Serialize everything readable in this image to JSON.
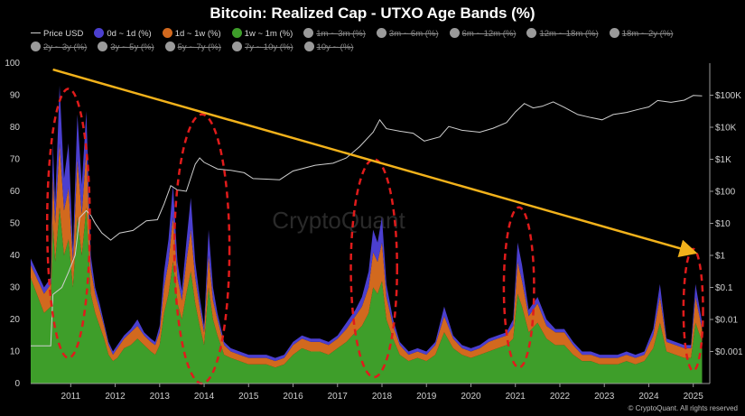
{
  "chart_data": {
    "type": "area",
    "title": "Bitcoin: Realized Cap - UTXO Age Bands (%)",
    "xlabel": "",
    "ylabel": "",
    "x_ticks": [
      "2011",
      "2012",
      "2013",
      "2014",
      "2015",
      "2016",
      "2017",
      "2018",
      "2019",
      "2020",
      "2021",
      "2022",
      "2023",
      "2024",
      "2025"
    ],
    "x_range": [
      2010.1,
      2025.25
    ],
    "y_left_range": [
      0,
      100
    ],
    "y_left_ticks": [
      0,
      10,
      20,
      30,
      40,
      50,
      60,
      70,
      80,
      90,
      100
    ],
    "y_right_scale": "log",
    "y_right_range": [
      0.0001,
      1000000
    ],
    "y_right_ticks": [
      {
        "value": 0.001,
        "label": "$0.001"
      },
      {
        "value": 0.01,
        "label": "$0.01"
      },
      {
        "value": 0.1,
        "label": "$0.1"
      },
      {
        "value": 1,
        "label": "$1"
      },
      {
        "value": 10,
        "label": "$10"
      },
      {
        "value": 100,
        "label": "$100"
      },
      {
        "value": 1000,
        "label": "$1K"
      },
      {
        "value": 10000,
        "label": "$10K"
      },
      {
        "value": 100000,
        "label": "$100K"
      }
    ],
    "grid": false,
    "legend_position": "top",
    "legend": [
      {
        "name": "Price USD",
        "marker": "line",
        "color": "#cfcfcf",
        "active": true
      },
      {
        "name": "0d ~ 1d (%)",
        "marker": "dot",
        "color": "#4b3fcf",
        "active": true
      },
      {
        "name": "1d ~ 1w (%)",
        "marker": "dot",
        "color": "#d2691e",
        "active": true
      },
      {
        "name": "1w ~ 1m (%)",
        "marker": "dot",
        "color": "#3e9e2a",
        "active": true
      },
      {
        "name": "1m ~ 3m (%)",
        "marker": "dot",
        "color": "#9a9a9a",
        "active": false
      },
      {
        "name": "3m ~ 6m (%)",
        "marker": "dot",
        "color": "#9a9a9a",
        "active": false
      },
      {
        "name": "6m ~ 12m (%)",
        "marker": "dot",
        "color": "#9a9a9a",
        "active": false
      },
      {
        "name": "12m ~ 18m (%)",
        "marker": "dot",
        "color": "#9a9a9a",
        "active": false
      },
      {
        "name": "18m ~ 2y (%)",
        "marker": "dot",
        "color": "#9a9a9a",
        "active": false
      },
      {
        "name": "2y ~ 3y (%)",
        "marker": "dot",
        "color": "#9a9a9a",
        "active": false
      },
      {
        "name": "3y ~ 5y (%)",
        "marker": "dot",
        "color": "#9a9a9a",
        "active": false
      },
      {
        "name": "5y ~ 7y (%)",
        "marker": "dot",
        "color": "#9a9a9a",
        "active": false
      },
      {
        "name": "7y ~ 10y (%)",
        "marker": "dot",
        "color": "#9a9a9a",
        "active": false
      },
      {
        "name": "10y ~ (%)",
        "marker": "dot",
        "color": "#9a9a9a",
        "active": false
      }
    ],
    "series_colors": {
      "band_0d_1d": "#4b3fcf",
      "band_1d_1w": "#d2691e",
      "band_1w_1m": "#3e9e2a",
      "price": "#cfcfcf",
      "trendline": "#f2b21b",
      "highlight": "#e01b1b"
    },
    "x": [
      2010.1,
      2010.4,
      2010.55,
      2010.6,
      2010.65,
      2010.75,
      2010.85,
      2010.95,
      2011.05,
      2011.15,
      2011.25,
      2011.35,
      2011.45,
      2011.55,
      2011.65,
      2011.75,
      2011.85,
      2011.95,
      2012.05,
      2012.2,
      2012.35,
      2012.5,
      2012.65,
      2012.8,
      2012.9,
      2013.0,
      2013.1,
      2013.2,
      2013.3,
      2013.4,
      2013.5,
      2013.6,
      2013.7,
      2013.8,
      2013.9,
      2014.0,
      2014.1,
      2014.2,
      2014.3,
      2014.45,
      2014.6,
      2014.8,
      2015.0,
      2015.2,
      2015.4,
      2015.6,
      2015.8,
      2016.0,
      2016.2,
      2016.4,
      2016.6,
      2016.8,
      2017.0,
      2017.2,
      2017.4,
      2017.55,
      2017.7,
      2017.8,
      2017.9,
      2018.0,
      2018.1,
      2018.25,
      2018.4,
      2018.6,
      2018.8,
      2019.0,
      2019.2,
      2019.4,
      2019.6,
      2019.8,
      2020.0,
      2020.2,
      2020.4,
      2020.6,
      2020.8,
      2020.95,
      2021.05,
      2021.15,
      2021.3,
      2021.5,
      2021.7,
      2021.9,
      2022.1,
      2022.3,
      2022.5,
      2022.7,
      2022.9,
      2023.1,
      2023.3,
      2023.5,
      2023.7,
      2023.9,
      2024.1,
      2024.25,
      2024.4,
      2024.6,
      2024.8,
      2024.95,
      2025.05,
      2025.2
    ],
    "series": [
      {
        "name": "1w ~ 1m (%)",
        "values": [
          33,
          22,
          24,
          50,
          38,
          55,
          40,
          45,
          30,
          52,
          40,
          55,
          28,
          22,
          18,
          14,
          9,
          7,
          8,
          11,
          12,
          14,
          12,
          10,
          9,
          12,
          22,
          28,
          38,
          25,
          20,
          28,
          35,
          25,
          18,
          12,
          30,
          20,
          15,
          9,
          8,
          7,
          6,
          6,
          6,
          5,
          6,
          9,
          11,
          10,
          10,
          9,
          11,
          13,
          16,
          18,
          22,
          30,
          28,
          32,
          20,
          14,
          9,
          7,
          8,
          7,
          9,
          16,
          11,
          9,
          8,
          9,
          10,
          11,
          12,
          14,
          28,
          24,
          16,
          19,
          14,
          12,
          12,
          9,
          7,
          7,
          6,
          6,
          6,
          7,
          6,
          7,
          11,
          19,
          10,
          9,
          8,
          8,
          19,
          13
        ]
      },
      {
        "name": "1d ~ 1w (%)",
        "values": [
          4,
          6,
          7,
          15,
          12,
          20,
          14,
          16,
          8,
          18,
          13,
          18,
          8,
          6,
          5,
          4,
          3,
          2,
          3,
          3,
          4,
          4,
          3,
          3,
          3,
          4,
          8,
          10,
          14,
          8,
          6,
          10,
          13,
          8,
          6,
          4,
          10,
          6,
          5,
          3,
          2,
          2,
          2,
          2,
          2,
          2,
          2,
          3,
          3,
          3,
          3,
          3,
          3,
          4,
          5,
          6,
          8,
          11,
          10,
          12,
          7,
          4,
          3,
          2,
          2,
          2,
          3,
          5,
          3,
          2,
          2,
          2,
          3,
          3,
          3,
          4,
          10,
          8,
          5,
          6,
          4,
          4,
          4,
          3,
          2,
          2,
          2,
          2,
          2,
          2,
          2,
          2,
          4,
          8,
          3,
          3,
          3,
          3,
          8,
          4
        ]
      },
      {
        "name": "0d ~ 1d (%)",
        "values": [
          2,
          2,
          2,
          10,
          6,
          18,
          10,
          14,
          4,
          14,
          9,
          12,
          4,
          2,
          2,
          1,
          1,
          1,
          1,
          1,
          1,
          2,
          1,
          1,
          1,
          2,
          5,
          7,
          10,
          5,
          3,
          6,
          10,
          5,
          3,
          2,
          8,
          4,
          2,
          1,
          1,
          1,
          1,
          1,
          1,
          1,
          1,
          1,
          1,
          1,
          1,
          1,
          1,
          2,
          2,
          3,
          5,
          7,
          6,
          8,
          4,
          2,
          1,
          1,
          1,
          1,
          1,
          3,
          1,
          1,
          1,
          1,
          1,
          1,
          1,
          2,
          6,
          5,
          2,
          2,
          2,
          1,
          1,
          1,
          1,
          1,
          1,
          1,
          1,
          1,
          1,
          1,
          2,
          4,
          1,
          1,
          1,
          1,
          4,
          2
        ]
      },
      {
        "name": "Price USD",
        "x": [
          2010.1,
          2010.55,
          2010.6,
          2010.8,
          2010.95,
          2011.1,
          2011.2,
          2011.35,
          2011.45,
          2011.55,
          2011.7,
          2011.9,
          2012.1,
          2012.4,
          2012.7,
          2012.95,
          2013.1,
          2013.25,
          2013.4,
          2013.6,
          2013.8,
          2013.9,
          2014.0,
          2014.3,
          2014.6,
          2014.9,
          2015.1,
          2015.4,
          2015.7,
          2016.0,
          2016.5,
          2016.9,
          2017.2,
          2017.5,
          2017.8,
          2017.95,
          2018.1,
          2018.4,
          2018.7,
          2018.95,
          2019.3,
          2019.5,
          2019.8,
          2020.2,
          2020.5,
          2020.8,
          2021.0,
          2021.2,
          2021.4,
          2021.6,
          2021.85,
          2022.1,
          2022.4,
          2022.7,
          2022.95,
          2023.2,
          2023.5,
          2023.8,
          2024.0,
          2024.2,
          2024.5,
          2024.8,
          2025.0,
          2025.2
        ],
        "values": [
          0.0015,
          0.0015,
          0.06,
          0.1,
          0.3,
          1,
          15,
          25,
          18,
          10,
          5,
          3,
          5,
          6,
          12,
          13,
          40,
          150,
          110,
          100,
          700,
          1100,
          800,
          500,
          450,
          380,
          250,
          240,
          230,
          430,
          650,
          750,
          1100,
          2500,
          7000,
          17000,
          9000,
          7500,
          6500,
          3700,
          5000,
          10500,
          8000,
          7000,
          9300,
          14000,
          30000,
          55000,
          40000,
          45000,
          62000,
          42000,
          25000,
          20000,
          17000,
          25000,
          29000,
          37000,
          43000,
          68000,
          60000,
          70000,
          98000,
          95000
        ]
      }
    ],
    "annotations": {
      "trendline": {
        "from": {
          "x": 2010.6,
          "y": 98
        },
        "to": {
          "x": 2025.0,
          "y": 41
        },
        "color": "#f2b21b"
      },
      "highlight_ellipses": [
        {
          "x_center": 2010.95,
          "y_center": 50,
          "x_halfwidth": 0.48,
          "y_halfwidth": 42
        },
        {
          "x_center": 2013.95,
          "y_center": 42,
          "x_halfwidth": 0.62,
          "y_halfwidth": 42
        },
        {
          "x_center": 2017.82,
          "y_center": 36,
          "x_halfwidth": 0.52,
          "y_halfwidth": 34
        },
        {
          "x_center": 2021.08,
          "y_center": 30,
          "x_halfwidth": 0.34,
          "y_halfwidth": 25
        },
        {
          "x_center": 2025.0,
          "y_center": 23,
          "x_halfwidth": 0.22,
          "y_halfwidth": 19
        }
      ]
    },
    "watermark": "CryptoQuant",
    "credit": "© CryptoQuant. All rights reserved"
  }
}
